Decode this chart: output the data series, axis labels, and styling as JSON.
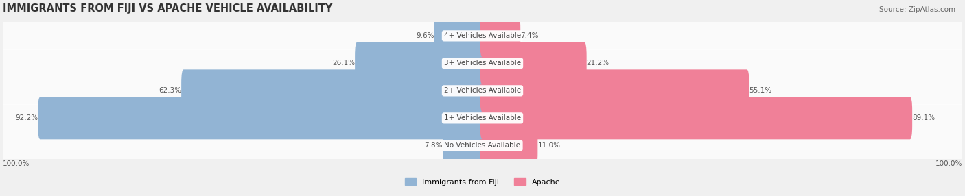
{
  "title": "IMMIGRANTS FROM FIJI VS APACHE VEHICLE AVAILABILITY",
  "source": "Source: ZipAtlas.com",
  "categories": [
    "No Vehicles Available",
    "1+ Vehicles Available",
    "2+ Vehicles Available",
    "3+ Vehicles Available",
    "4+ Vehicles Available"
  ],
  "fiji_values": [
    7.8,
    92.2,
    62.3,
    26.1,
    9.6
  ],
  "apache_values": [
    11.0,
    89.1,
    55.1,
    21.2,
    7.4
  ],
  "fiji_color": "#92b4d4",
  "apache_color": "#f08098",
  "fiji_label": "Immigrants from Fiji",
  "apache_label": "Apache",
  "axis_label": "100.0%",
  "bg_color": "#f0f0f0",
  "row_bg_color": "#e8e8e8",
  "bar_height": 0.55,
  "figsize": [
    14.06,
    2.86
  ],
  "dpi": 100
}
